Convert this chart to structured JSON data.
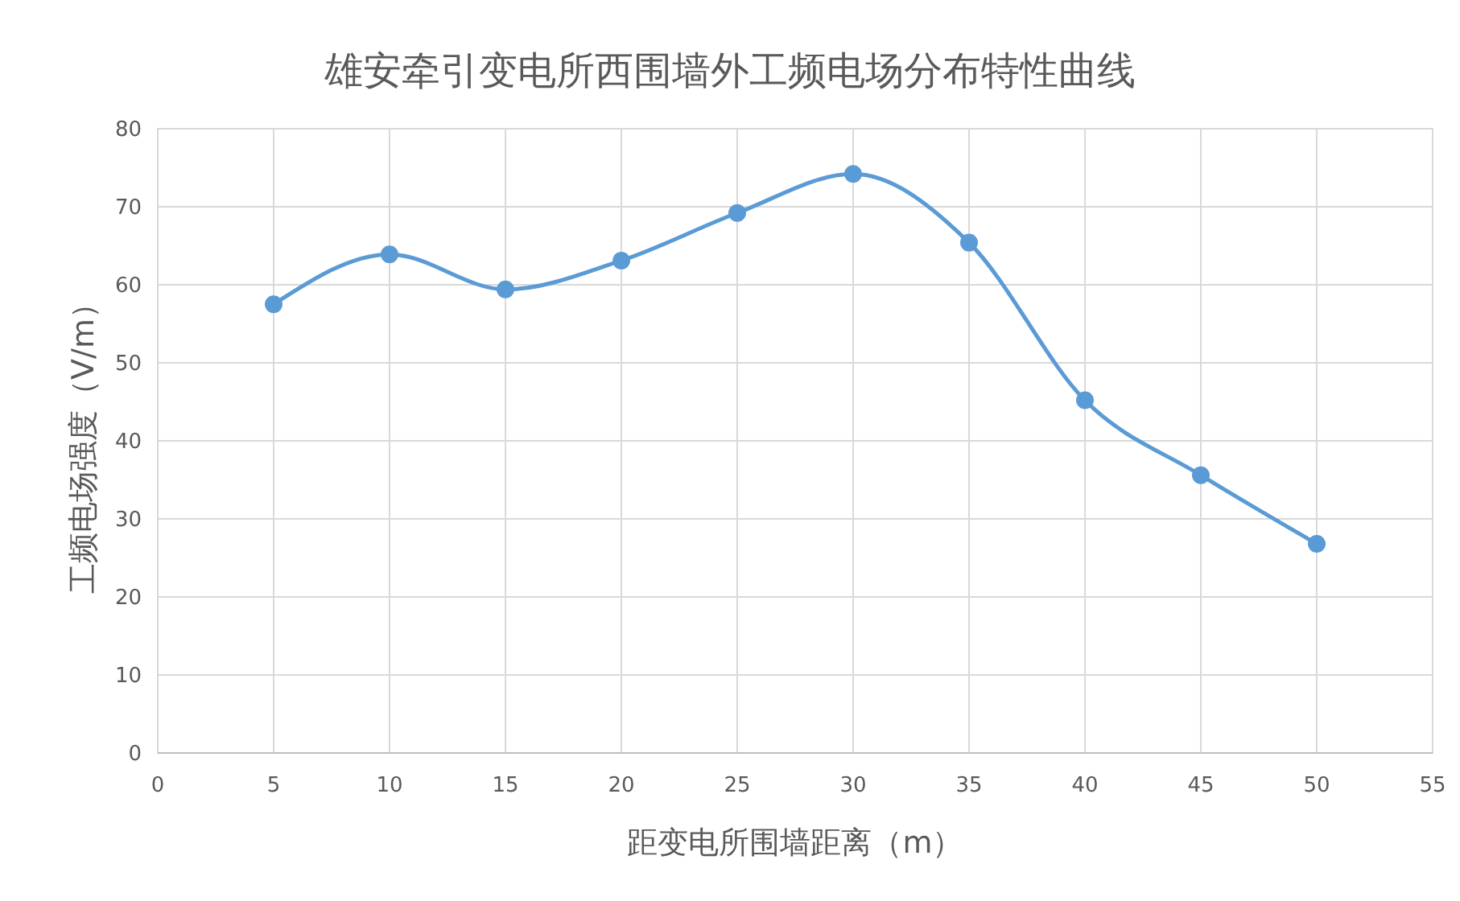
{
  "chart_data": {
    "type": "line",
    "title": "雄安牵引变电所西围墙外工频电场分布特性曲线",
    "xlabel": "距变电所围墙距离（m）",
    "ylabel": "工频电场强度（V/m）",
    "x": [
      5,
      10,
      15,
      20,
      25,
      30,
      35,
      40,
      45,
      50
    ],
    "series": [
      {
        "color": "#5b9bd5",
        "values": [
          57.5,
          63.9,
          59.4,
          63.1,
          69.2,
          74.2,
          65.4,
          45.2,
          35.6,
          26.8
        ]
      }
    ],
    "xlim": [
      0,
      55
    ],
    "xticks": [
      0,
      5,
      10,
      15,
      20,
      25,
      30,
      35,
      40,
      45,
      50,
      55
    ],
    "ylim": [
      0,
      80
    ],
    "yticks": [
      0,
      10,
      20,
      30,
      40,
      50,
      60,
      70,
      80
    ],
    "grid": true,
    "marker": "circle",
    "line_style": "solid"
  }
}
